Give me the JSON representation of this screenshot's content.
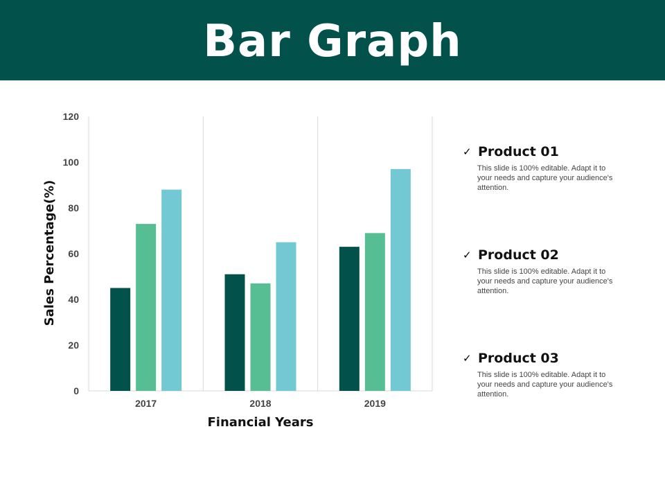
{
  "header": {
    "title": "Bar Graph",
    "color": "#02514a"
  },
  "chart_data": {
    "type": "bar",
    "categories": [
      "2017",
      "2018",
      "2019"
    ],
    "series": [
      {
        "name": "Product 01",
        "values": [
          45,
          51,
          63
        ],
        "color": "#02514a"
      },
      {
        "name": "Product 02",
        "values": [
          73,
          47,
          69
        ],
        "color": "#57be94"
      },
      {
        "name": "Product 03",
        "values": [
          88,
          65,
          97
        ],
        "color": "#72c8d3"
      }
    ],
    "xlabel": "Financial Years",
    "ylabel": "Sales Percentage(%)",
    "ylim": [
      0,
      120
    ],
    "yticks": [
      0,
      20,
      40,
      60,
      80,
      100,
      120
    ],
    "grid": "vertical category separators",
    "legend": "right"
  },
  "legend": {
    "items": [
      {
        "label": "Product 01",
        "desc": "This slide is 100% editable. Adapt it to your needs and capture your audience's attention."
      },
      {
        "label": "Product 02",
        "desc": "This slide is 100% editable. Adapt it to your needs and capture your audience's attention."
      },
      {
        "label": "Product 03",
        "desc": "This slide is 100% editable. Adapt it to your needs and capture your audience's attention."
      }
    ],
    "check_icon": "checkmark-icon"
  }
}
